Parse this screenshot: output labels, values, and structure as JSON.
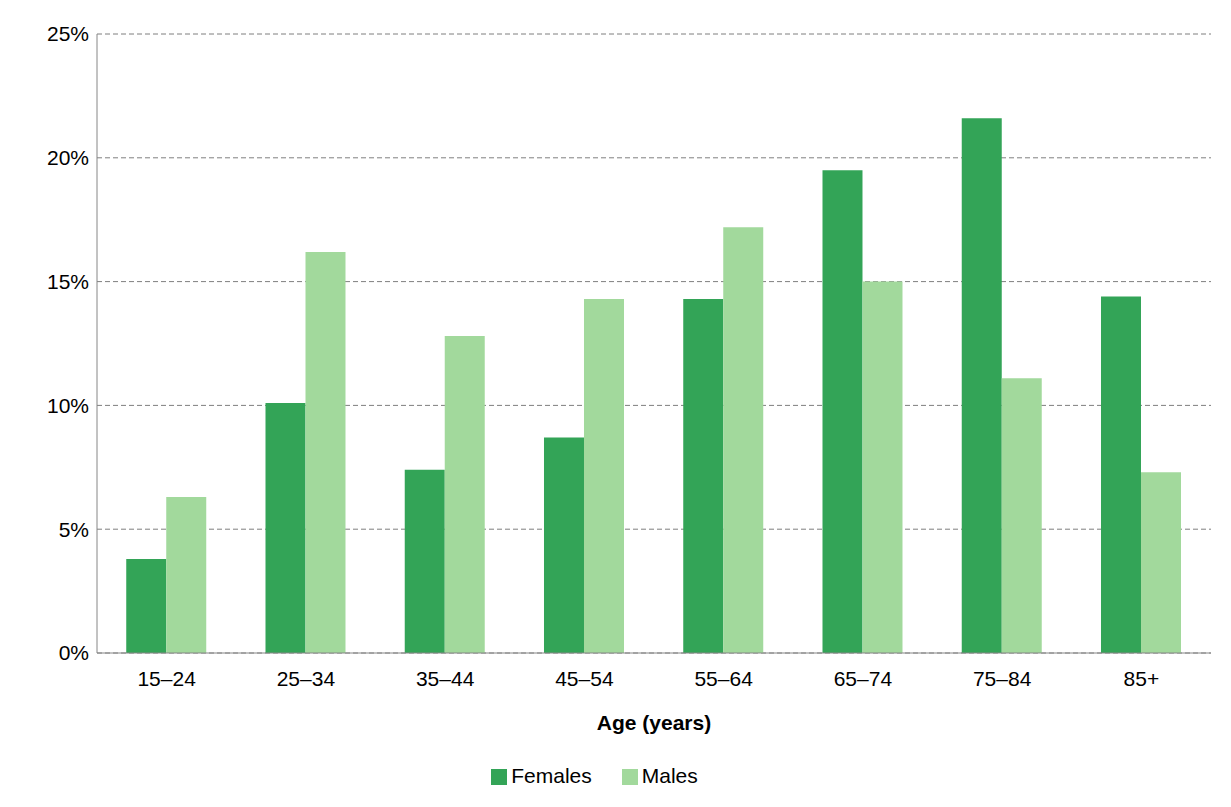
{
  "chart_data": {
    "type": "bar",
    "x_label": "Age (years)",
    "categories": [
      "15–24",
      "25–34",
      "35–44",
      "45–54",
      "55–64",
      "65–74",
      "75–84",
      "85+"
    ],
    "series": [
      {
        "name": "Females",
        "color": "#33a457",
        "values": [
          3.8,
          10.1,
          7.4,
          8.7,
          14.3,
          19.5,
          21.6,
          14.4
        ]
      },
      {
        "name": "Males",
        "color": "#a2d99c",
        "values": [
          6.3,
          16.2,
          12.8,
          14.3,
          17.2,
          15.0,
          11.1,
          7.3
        ]
      }
    ],
    "ylim": [
      0,
      25
    ],
    "yticks": [
      {
        "value": 0,
        "label": "0%"
      },
      {
        "value": 5,
        "label": "5%"
      },
      {
        "value": 10,
        "label": "10%"
      },
      {
        "value": 15,
        "label": "15%"
      },
      {
        "value": 20,
        "label": "20%"
      },
      {
        "value": 25,
        "label": "25%"
      }
    ],
    "grid": true,
    "legend": "bottom"
  }
}
